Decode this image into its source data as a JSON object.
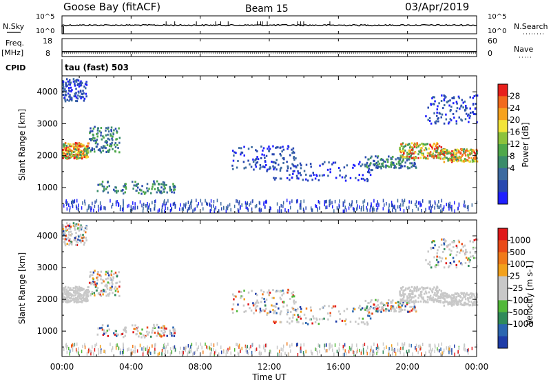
{
  "header": {
    "station": "Goose Bay (fitACF)",
    "beam": "Beam 15",
    "date": "03/Apr/2019"
  },
  "top_panels": {
    "nsky_label": "N.Sky",
    "nsky_ticks": [
      "10^5",
      "10^0"
    ],
    "nsearch_label": "N.Search",
    "nsearch_ticks": [
      "10^5",
      "10^0"
    ],
    "freq_label": "Freq.",
    "freq_unit": "[MHz]",
    "freq_ticks": [
      "18",
      "8"
    ],
    "nave_label": "Nave",
    "nave_ticks": [
      "60",
      "0"
    ],
    "cpid_label": "CPID",
    "cpid_value": "tau (fast) 503"
  },
  "chart_data": [
    {
      "type": "heatmap",
      "name": "power",
      "ylabel": "Slant Range [km]",
      "yticks": [
        "4000",
        "3000",
        "2000",
        "1000"
      ],
      "ylim": [
        200,
        4500
      ],
      "xlim_hours": [
        0,
        24
      ],
      "colorbar": {
        "label": "Power [dB]",
        "ticks": [
          "28",
          "24",
          "20",
          "16",
          "12",
          "8",
          "4"
        ],
        "colors": [
          "#1f1fff",
          "#2848b0",
          "#3c6aa0",
          "#3a8c6a",
          "#4fa84a",
          "#8cc23c",
          "#f3e53a",
          "#f6a21e",
          "#f26a1c",
          "#e8201c"
        ]
      },
      "echo_bands": [
        {
          "t": [
            0.0,
            1.5
          ],
          "range": [
            1900,
            2400
          ],
          "level": "strong"
        },
        {
          "t": [
            1.5,
            3.3
          ],
          "range": [
            2100,
            2900
          ],
          "level": "medium"
        },
        {
          "t": [
            0.0,
            1.4
          ],
          "range": [
            3700,
            4400
          ],
          "level": "weak"
        },
        {
          "t": [
            2.0,
            6.5
          ],
          "range": [
            800,
            1200
          ],
          "level": "medium"
        },
        {
          "t": [
            9.8,
            13.5
          ],
          "range": [
            1500,
            2300
          ],
          "level": "weak"
        },
        {
          "t": [
            12.0,
            18.0
          ],
          "range": [
            1200,
            1800
          ],
          "level": "weak"
        },
        {
          "t": [
            17.5,
            20.5
          ],
          "range": [
            1600,
            2000
          ],
          "level": "medium"
        },
        {
          "t": [
            19.5,
            22.0
          ],
          "range": [
            1900,
            2400
          ],
          "level": "strong"
        },
        {
          "t": [
            22.0,
            24.0
          ],
          "range": [
            1800,
            2200
          ],
          "level": "strong"
        },
        {
          "t": [
            21.0,
            24.0
          ],
          "range": [
            3000,
            3900
          ],
          "level": "weak"
        },
        {
          "t": [
            0.0,
            24.0
          ],
          "range": [
            250,
            600
          ],
          "level": "scattered"
        }
      ]
    },
    {
      "type": "heatmap",
      "name": "velocity",
      "ylabel": "Slant Range [km]",
      "yticks": [
        "4000",
        "3000",
        "2000",
        "1000"
      ],
      "ylim": [
        200,
        4500
      ],
      "xlim_hours": [
        0,
        24
      ],
      "colorbar": {
        "label": "Velocity [m s-1]",
        "ticks": [
          "1000",
          "500",
          "100",
          "25",
          "-25",
          "-100",
          "-500",
          "-1000"
        ],
        "colors": [
          "#1e3ca8",
          "#2b66b0",
          "#2f8a5a",
          "#52b83a",
          "#c8c8c8",
          "#c8c8c8",
          "#f2a11c",
          "#f07a1a",
          "#ea4a18",
          "#e0181a"
        ]
      }
    }
  ],
  "xaxis": {
    "label": "Time UT",
    "ticks": [
      "00:00",
      "04:00",
      "08:00",
      "12:00",
      "16:00",
      "20:00",
      "00:00"
    ]
  }
}
